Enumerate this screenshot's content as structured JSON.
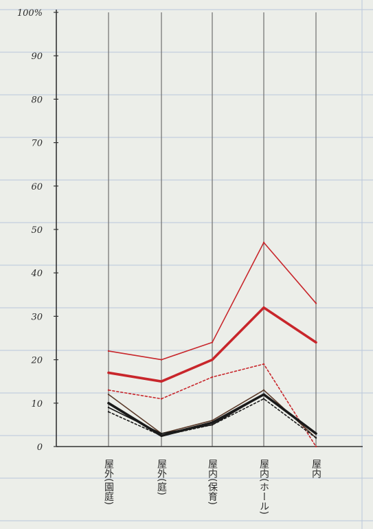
{
  "chart_data": {
    "type": "line",
    "grid": true,
    "legend": "none",
    "ylim": [
      0,
      100
    ],
    "y_ticks": [
      "0",
      "10",
      "20",
      "30",
      "40",
      "50",
      "60",
      "70",
      "80",
      "90",
      "100%"
    ],
    "categories": [
      "屋外(園庭)",
      "屋外(庭)",
      "屋内(保育)",
      "屋内(ホール)",
      "屋内"
    ],
    "series": [
      {
        "color": "#c8262b",
        "style": "solid-thin",
        "values": [
          22,
          20,
          24,
          47,
          33
        ]
      },
      {
        "color": "#c8262b",
        "style": "solid-thick",
        "values": [
          17,
          15,
          20,
          32,
          24
        ]
      },
      {
        "color": "#c8262b",
        "style": "dashed",
        "values": [
          13,
          11,
          16,
          19,
          0
        ]
      },
      {
        "color": "#5a3a2a",
        "style": "solid-thin",
        "values": [
          12,
          3,
          6,
          13,
          2
        ]
      },
      {
        "color": "#1a1a1a",
        "style": "solid-thick",
        "values": [
          10,
          2.5,
          5.5,
          12,
          3
        ]
      },
      {
        "color": "#1a1a1a",
        "style": "solid-thin",
        "values": [
          9,
          3,
          5,
          12,
          3
        ]
      },
      {
        "color": "#1a1a1a",
        "style": "dashed",
        "values": [
          8,
          2.5,
          5,
          11,
          2
        ]
      }
    ]
  }
}
